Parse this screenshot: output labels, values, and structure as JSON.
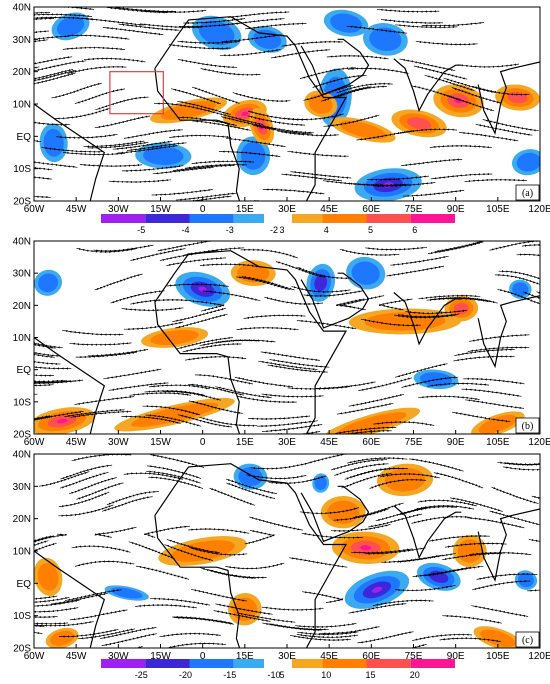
{
  "figure": {
    "panels": [
      {
        "label": "(a)",
        "lon_ticks": [
          "60W",
          "45W",
          "30W",
          "15W",
          "0",
          "15E",
          "30E",
          "45E",
          "60E",
          "75E",
          "90E",
          "105E",
          "120E"
        ],
        "lat_ticks": [
          "40N",
          "30N",
          "20N",
          "10N",
          "EQ",
          "10S",
          "20S"
        ],
        "shade_colors": [
          "#a020f0",
          "#3c28d8",
          "#1e78ff",
          "#3caaf0",
          "#f5a623",
          "#ff7f00",
          "#ff5050",
          "#ff1493"
        ],
        "blobs": [
          {
            "lon": -47,
            "lat": 34,
            "rx": 7,
            "ry": 4,
            "sign": "neg",
            "lvl": 1
          },
          {
            "lon": 5,
            "lat": 32,
            "rx": 9,
            "ry": 5,
            "sign": "neg",
            "lvl": 1
          },
          {
            "lon": 23,
            "lat": 30,
            "rx": 7,
            "ry": 4,
            "sign": "neg",
            "lvl": 1
          },
          {
            "lon": 51,
            "lat": 35,
            "rx": 8,
            "ry": 4,
            "sign": "neg",
            "lvl": 1
          },
          {
            "lon": 65,
            "lat": 30,
            "rx": 8,
            "ry": 5,
            "sign": "neg",
            "lvl": 1
          },
          {
            "lon": 47,
            "lat": 12,
            "rx": 6,
            "ry": 9,
            "sign": "neg",
            "lvl": 1
          },
          {
            "lon": -14,
            "lat": -6,
            "rx": 10,
            "ry": 4,
            "sign": "neg",
            "lvl": 1
          },
          {
            "lon": 18,
            "lat": -6,
            "rx": 6,
            "ry": 6,
            "sign": "neg",
            "lvl": 1
          },
          {
            "lon": -53,
            "lat": -2,
            "rx": 5,
            "ry": 6,
            "sign": "neg",
            "lvl": 1
          },
          {
            "lon": 66,
            "lat": -15,
            "rx": 12,
            "ry": 5,
            "sign": "neg",
            "lvl": 3
          },
          {
            "lon": 116,
            "lat": -8,
            "rx": 6,
            "ry": 4,
            "sign": "neg",
            "lvl": 1
          },
          {
            "lon": -5,
            "lat": 8,
            "rx": 14,
            "ry": 3,
            "sign": "pos",
            "lvl": 1
          },
          {
            "lon": 15,
            "lat": 7,
            "rx": 8,
            "ry": 4,
            "sign": "pos",
            "lvl": 4
          },
          {
            "lon": 21,
            "lat": 3,
            "rx": 4,
            "ry": 6,
            "sign": "pos",
            "lvl": 3
          },
          {
            "lon": 42,
            "lat": 10,
            "rx": 6,
            "ry": 4,
            "sign": "pos",
            "lvl": 1
          },
          {
            "lon": 57,
            "lat": 2,
            "rx": 12,
            "ry": 3,
            "sign": "pos",
            "lvl": 1
          },
          {
            "lon": 77,
            "lat": 4,
            "rx": 10,
            "ry": 4,
            "sign": "pos",
            "lvl": 2
          },
          {
            "lon": 91,
            "lat": 11,
            "rx": 9,
            "ry": 5,
            "sign": "pos",
            "lvl": 3
          },
          {
            "lon": 112,
            "lat": 12,
            "rx": 8,
            "ry": 4,
            "sign": "pos",
            "lvl": 2
          }
        ],
        "box": {
          "lon1": -33,
          "lat1": 7,
          "lon2": -14,
          "lat2": 20
        },
        "colorbar": {
          "labels": [
            "-5",
            "-4",
            "-3",
            "-2",
            "3",
            "4",
            "5",
            "6"
          ],
          "colors": [
            "#a020f0",
            "#3c28d8",
            "#1e78ff",
            "#3caaf0",
            "#f5a623",
            "#ff7f00",
            "#ff5050",
            "#ff1493"
          ]
        }
      },
      {
        "label": "(b)",
        "lon_ticks": [
          "60W",
          "45W",
          "30W",
          "15W",
          "0",
          "15E",
          "30E",
          "45E",
          "60E",
          "75E",
          "90E",
          "105E",
          "120E"
        ],
        "lat_ticks": [
          "40N",
          "30N",
          "20N",
          "10N",
          "EQ",
          "10S",
          "20S"
        ],
        "shade_colors": [
          "#a020f0",
          "#3c28d8",
          "#1e78ff",
          "#3caaf0",
          "#f5a623",
          "#ff7f00",
          "#ff5050",
          "#ff1493"
        ],
        "blobs": [
          {
            "lon": -55,
            "lat": 27,
            "rx": 5,
            "ry": 4,
            "sign": "neg",
            "lvl": 1
          },
          {
            "lon": 0,
            "lat": 25,
            "rx": 10,
            "ry": 5,
            "sign": "neg",
            "lvl": 3
          },
          {
            "lon": 42,
            "lat": 27,
            "rx": 5,
            "ry": 6,
            "sign": "neg",
            "lvl": 2
          },
          {
            "lon": 58,
            "lat": 30,
            "rx": 7,
            "ry": 5,
            "sign": "neg",
            "lvl": 1
          },
          {
            "lon": 113,
            "lat": 25,
            "rx": 4,
            "ry": 3,
            "sign": "neg",
            "lvl": 1
          },
          {
            "lon": 83,
            "lat": -3,
            "rx": 8,
            "ry": 3,
            "sign": "neg",
            "lvl": 1
          },
          {
            "lon": 18,
            "lat": 30,
            "rx": 8,
            "ry": 4,
            "sign": "pos",
            "lvl": 1
          },
          {
            "lon": 72,
            "lat": 15,
            "rx": 20,
            "ry": 4,
            "sign": "pos",
            "lvl": 1
          },
          {
            "lon": 92,
            "lat": 19,
            "rx": 6,
            "ry": 4,
            "sign": "pos",
            "lvl": 2
          },
          {
            "lon": -10,
            "lat": 10,
            "rx": 12,
            "ry": 3,
            "sign": "pos",
            "lvl": 1
          },
          {
            "lon": -50,
            "lat": -16,
            "rx": 12,
            "ry": 4,
            "sign": "pos",
            "lvl": 3
          },
          {
            "lon": -10,
            "lat": -14,
            "rx": 22,
            "ry": 3,
            "sign": "pos",
            "lvl": 1
          },
          {
            "lon": 60,
            "lat": -17,
            "rx": 18,
            "ry": 3,
            "sign": "pos",
            "lvl": 1
          },
          {
            "lon": 105,
            "lat": -17,
            "rx": 10,
            "ry": 3,
            "sign": "pos",
            "lvl": 1
          }
        ],
        "colorbar": null
      },
      {
        "label": "(c)",
        "lon_ticks": [
          "60W",
          "45W",
          "30W",
          "15W",
          "0",
          "15E",
          "30E",
          "45E",
          "60E",
          "75E",
          "90E",
          "105E",
          "120E"
        ],
        "lat_ticks": [
          "40N",
          "30N",
          "20N",
          "10N",
          "EQ",
          "10S",
          "20S"
        ],
        "shade_colors": [
          "#a020f0",
          "#3c28d8",
          "#1e78ff",
          "#3caaf0",
          "#f5a623",
          "#ff7f00",
          "#ff5050",
          "#ff1493"
        ],
        "blobs": [
          {
            "lon": 62,
            "lat": -2,
            "rx": 12,
            "ry": 5,
            "sign": "neg",
            "lvl": 3
          },
          {
            "lon": 84,
            "lat": 2,
            "rx": 8,
            "ry": 4,
            "sign": "neg",
            "lvl": 2
          },
          {
            "lon": 115,
            "lat": 1,
            "rx": 4,
            "ry": 3,
            "sign": "neg",
            "lvl": 1
          },
          {
            "lon": -27,
            "lat": -3,
            "rx": 8,
            "ry": 2,
            "sign": "neg",
            "lvl": 1
          },
          {
            "lon": 42,
            "lat": 31,
            "rx": 3,
            "ry": 3,
            "sign": "neg",
            "lvl": 1
          },
          {
            "lon": 17,
            "lat": 33,
            "rx": 6,
            "ry": 4,
            "sign": "neg",
            "lvl": 1
          },
          {
            "lon": 58,
            "lat": 11,
            "rx": 12,
            "ry": 5,
            "sign": "pos",
            "lvl": 3
          },
          {
            "lon": 50,
            "lat": 22,
            "rx": 8,
            "ry": 5,
            "sign": "pos",
            "lvl": 1
          },
          {
            "lon": 72,
            "lat": 32,
            "rx": 10,
            "ry": 5,
            "sign": "pos",
            "lvl": 1
          },
          {
            "lon": 95,
            "lat": 10,
            "rx": 6,
            "ry": 5,
            "sign": "pos",
            "lvl": 1
          },
          {
            "lon": 0,
            "lat": 10,
            "rx": 16,
            "ry": 4,
            "sign": "pos",
            "lvl": 1
          },
          {
            "lon": -55,
            "lat": 2,
            "rx": 5,
            "ry": 6,
            "sign": "pos",
            "lvl": 1
          },
          {
            "lon": -50,
            "lat": -17,
            "rx": 6,
            "ry": 3,
            "sign": "pos",
            "lvl": 1
          },
          {
            "lon": 15,
            "lat": -8,
            "rx": 6,
            "ry": 5,
            "sign": "pos",
            "lvl": 1
          },
          {
            "lon": 105,
            "lat": -17,
            "rx": 9,
            "ry": 3,
            "sign": "pos",
            "lvl": 1
          }
        ],
        "colorbar": {
          "labels": [
            "-25",
            "-20",
            "-15",
            "-10",
            "5",
            "10",
            "15",
            "20"
          ],
          "colors": [
            "#a020f0",
            "#3c28d8",
            "#1e78ff",
            "#3caaf0",
            "#f5a623",
            "#ff7f00",
            "#ff5050",
            "#ff1493"
          ]
        }
      }
    ]
  },
  "chart_data": [
    {
      "type": "heatmap",
      "panel": "(a)",
      "x_ticks": [
        "60W",
        "45W",
        "30W",
        "15W",
        "0",
        "15E",
        "30E",
        "45E",
        "60E",
        "75E",
        "90E",
        "105E",
        "120E"
      ],
      "y_ticks": [
        "40N",
        "30N",
        "20N",
        "10N",
        "EQ",
        "10S",
        "20S"
      ],
      "xlim": [
        -60,
        120
      ],
      "ylim": [
        -20,
        40
      ],
      "colorbar_levels": [
        -5,
        -4,
        -3,
        -2,
        3,
        4,
        5,
        6
      ]
    },
    {
      "type": "heatmap",
      "panel": "(b)",
      "x_ticks": [
        "60W",
        "45W",
        "30W",
        "15W",
        "0",
        "15E",
        "30E",
        "45E",
        "60E",
        "75E",
        "90E",
        "105E",
        "120E"
      ],
      "y_ticks": [
        "40N",
        "30N",
        "20N",
        "10N",
        "EQ",
        "10S",
        "20S"
      ],
      "xlim": [
        -60,
        120
      ],
      "ylim": [
        -20,
        40
      ]
    },
    {
      "type": "heatmap",
      "panel": "(c)",
      "x_ticks": [
        "60W",
        "45W",
        "30W",
        "15W",
        "0",
        "15E",
        "30E",
        "45E",
        "60E",
        "75E",
        "90E",
        "105E",
        "120E"
      ],
      "y_ticks": [
        "40N",
        "30N",
        "20N",
        "10N",
        "EQ",
        "10S",
        "20S"
      ],
      "xlim": [
        -60,
        120
      ],
      "ylim": [
        -20,
        40
      ],
      "colorbar_levels": [
        -25,
        -20,
        -15,
        -10,
        5,
        10,
        15,
        20
      ]
    }
  ]
}
